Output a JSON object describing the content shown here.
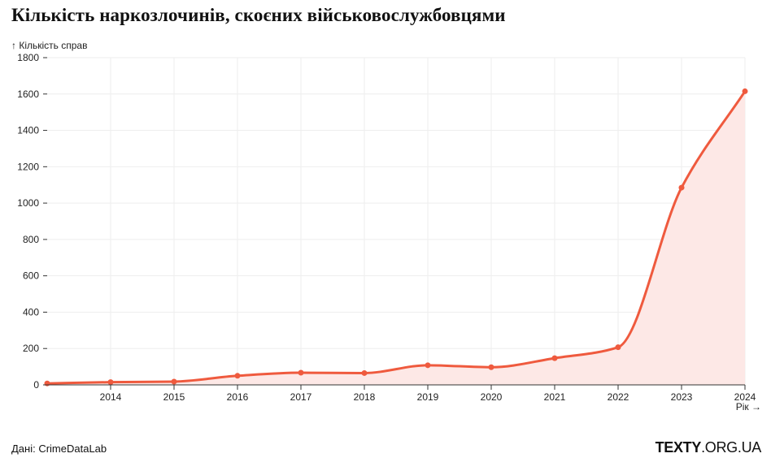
{
  "title": "Кількість наркозлочинів, скоєних військовослужбовцями",
  "source": "Дані: CrimeDataLab",
  "brand": {
    "bold": "TEXTY",
    "light": ".ORG.UA"
  },
  "colors": {
    "line": "#ef5a3e",
    "area": "#fde8e6",
    "grid": "#eeeeee",
    "axis": "#333333"
  },
  "chart_data": {
    "type": "area",
    "title": "Кількість наркозлочинів, скоєних військовослужбовцями",
    "xlabel": "Рік →",
    "ylabel": "↑ Кількість справ",
    "x": [
      2013,
      2014,
      2015,
      2016,
      2017,
      2018,
      2019,
      2020,
      2021,
      2022,
      2023,
      2024
    ],
    "x_tick_labels": [
      2014,
      2015,
      2016,
      2017,
      2018,
      2019,
      2020,
      2021,
      2022,
      2023,
      2024
    ],
    "values": [
      8,
      15,
      18,
      50,
      67,
      65,
      108,
      97,
      147,
      207,
      1085,
      1615
    ],
    "ylim": [
      0,
      1800
    ],
    "y_ticks": [
      0,
      200,
      400,
      600,
      800,
      1000,
      1200,
      1400,
      1600,
      1800
    ],
    "grid": true,
    "curve": "smooth"
  }
}
